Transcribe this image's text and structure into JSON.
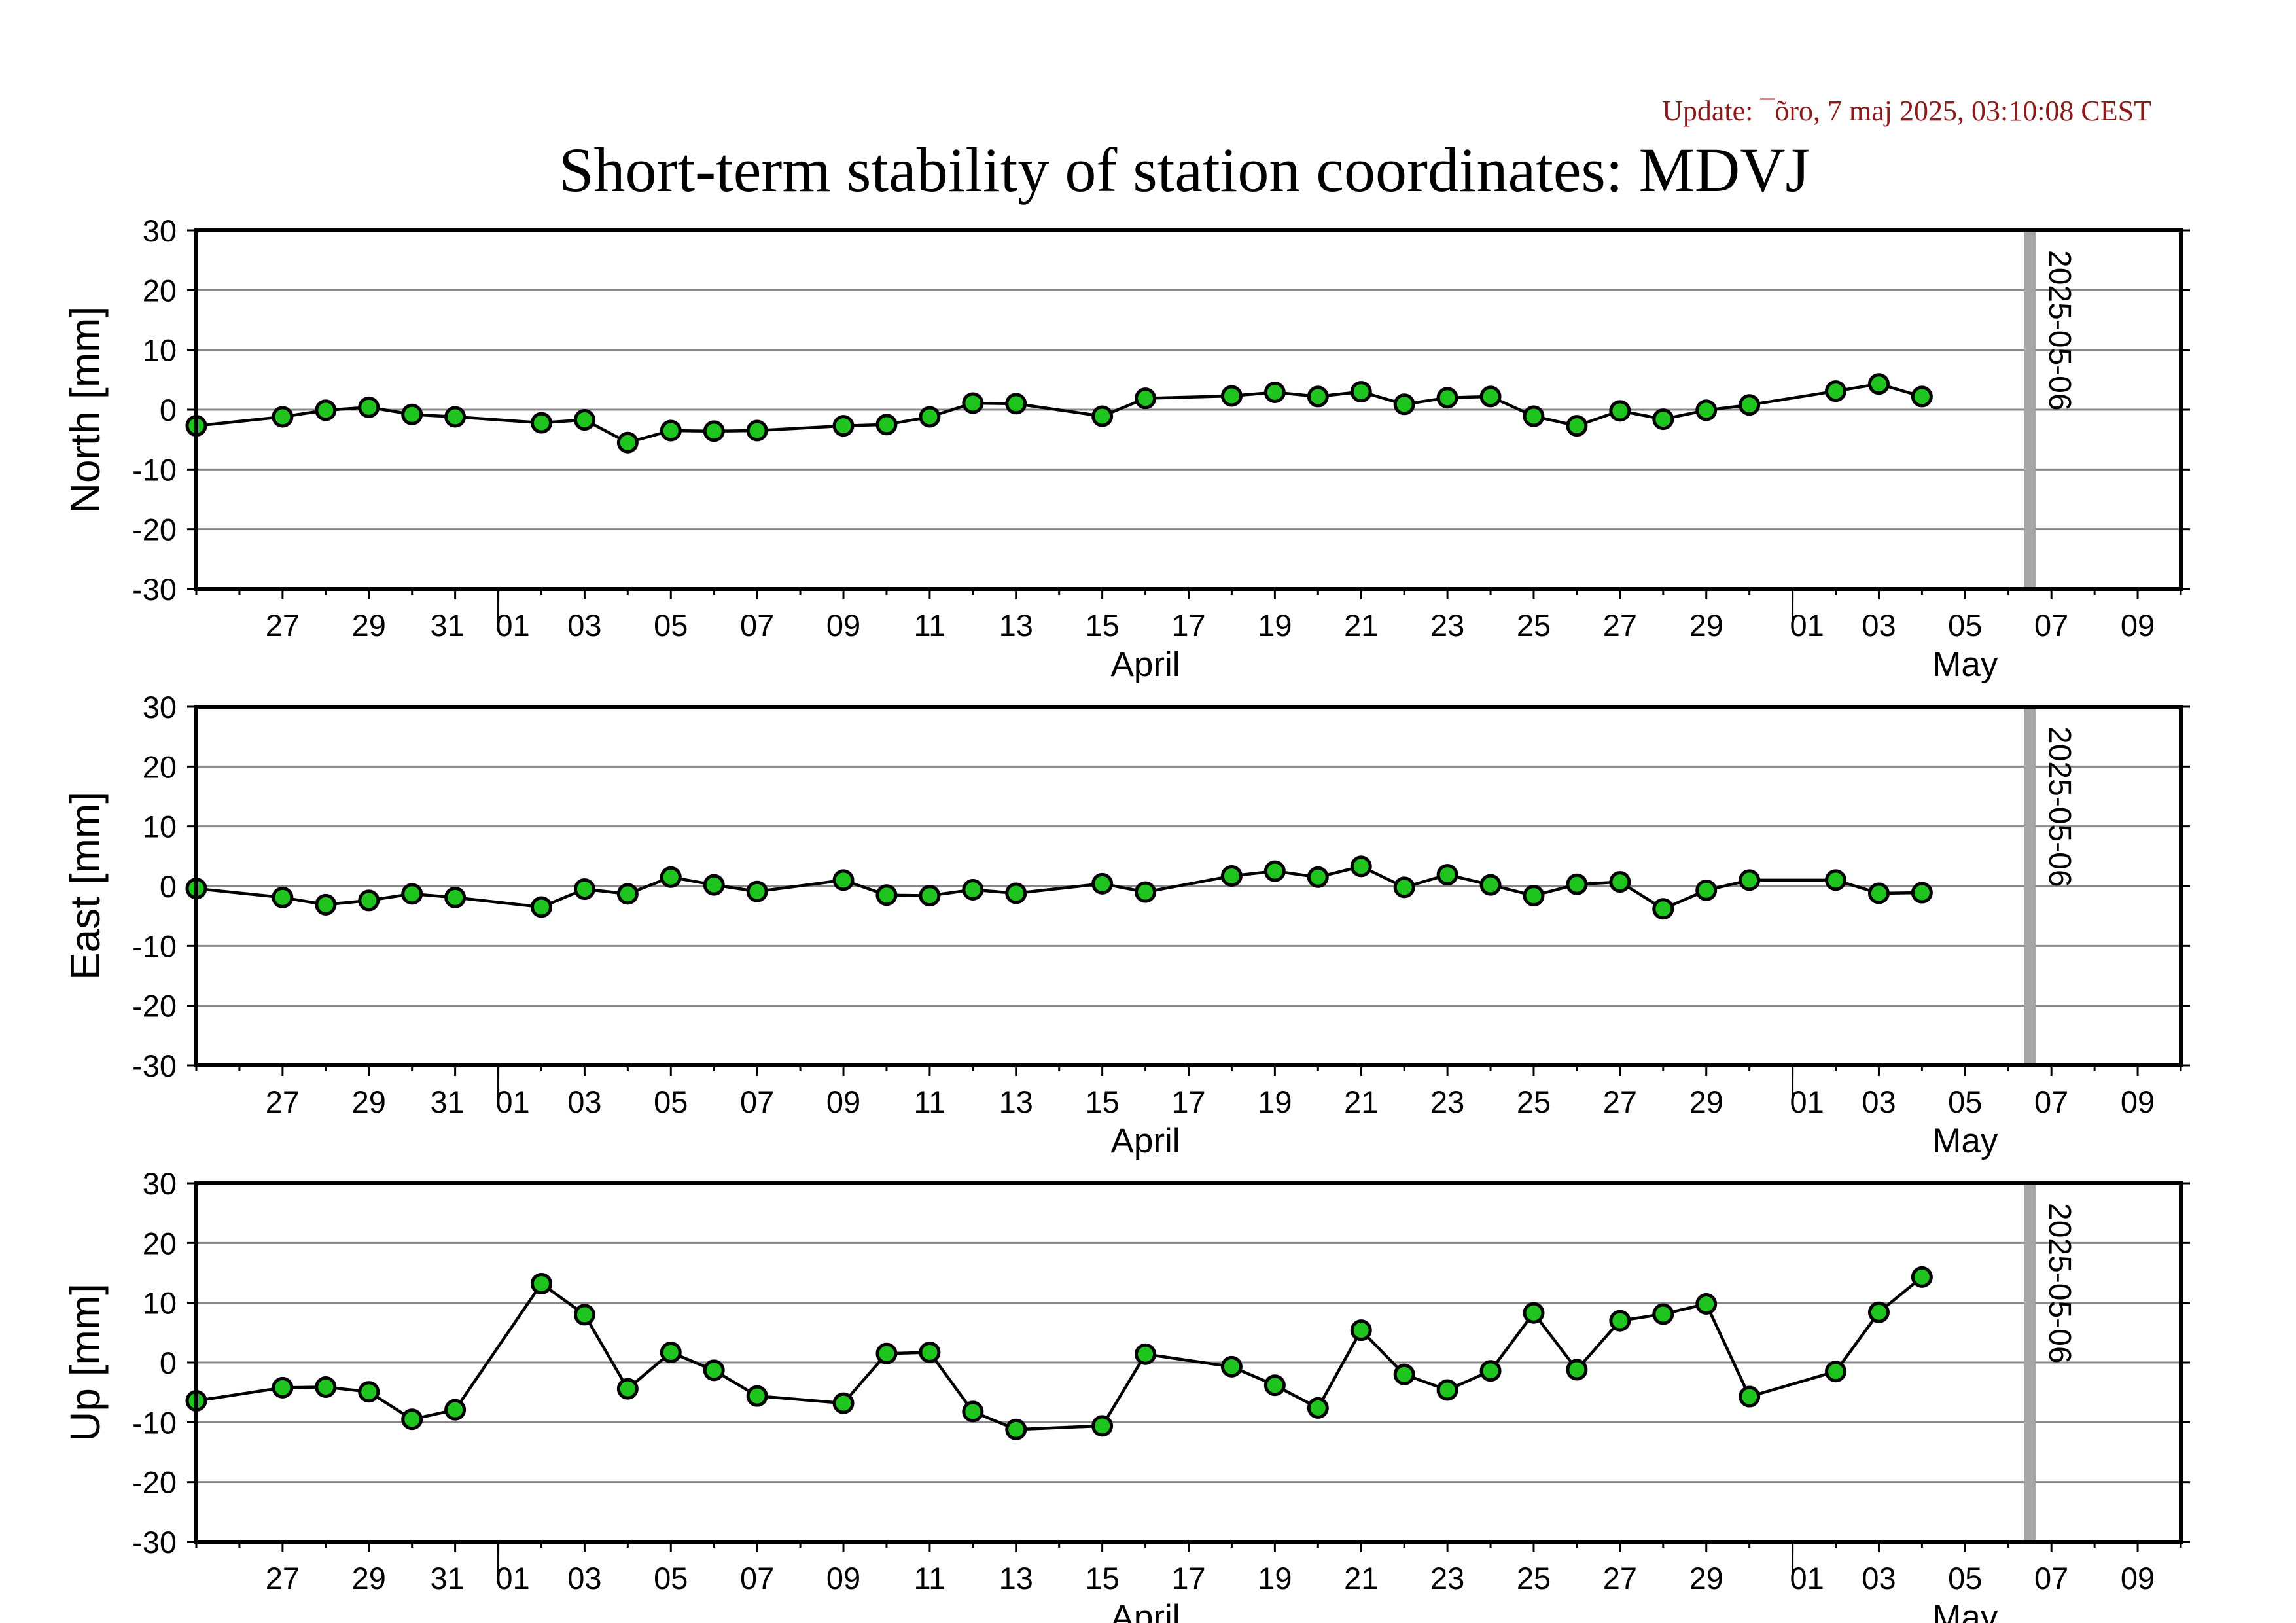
{
  "header": {
    "update_text": "Update: ¯õro, 7 maj 2025, 03:10:08 CEST",
    "title": "Short-term stability of station coordinates: MDVJ"
  },
  "colors": {
    "marker_fill": "#1fc41f",
    "marker_edge": "#000000",
    "line": "#000000",
    "grid": "#888888",
    "today_bar": "#a6a6a6",
    "update_text": "#8b1a1a"
  },
  "chart_data": [
    {
      "type": "line",
      "ylabel": "North [mm]",
      "ylim": [
        -30,
        30
      ],
      "yticks": [
        -30,
        -20,
        -10,
        0,
        10,
        20,
        30
      ],
      "x_range": [
        "2025-03-25",
        "2025-05-10"
      ],
      "x_tick_labels": [
        "27",
        "29",
        "31",
        "01",
        "03",
        "05",
        "07",
        "09",
        "11",
        "13",
        "15",
        "17",
        "19",
        "21",
        "23",
        "25",
        "27",
        "29",
        "01",
        "03",
        "05",
        "07",
        "09"
      ],
      "month_labels": [
        "April",
        "May"
      ],
      "marker_line_date": "2025-05-06",
      "marker_line_label": "2025-05-06",
      "grid": "horizontal",
      "x": [
        "2025-03-25",
        "2025-03-27",
        "2025-03-28",
        "2025-03-29",
        "2025-03-30",
        "2025-03-31",
        "2025-04-02",
        "2025-04-03",
        "2025-04-04",
        "2025-04-05",
        "2025-04-06",
        "2025-04-07",
        "2025-04-09",
        "2025-04-10",
        "2025-04-11",
        "2025-04-12",
        "2025-04-13",
        "2025-04-15",
        "2025-04-16",
        "2025-04-18",
        "2025-04-19",
        "2025-04-20",
        "2025-04-21",
        "2025-04-22",
        "2025-04-23",
        "2025-04-24",
        "2025-04-25",
        "2025-04-26",
        "2025-04-27",
        "2025-04-28",
        "2025-04-29",
        "2025-04-30",
        "2025-05-02",
        "2025-05-03",
        "2025-05-04"
      ],
      "y": [
        -2.7,
        -1.2,
        -0.1,
        0.4,
        -0.8,
        -1.2,
        -2.2,
        -1.7,
        -5.5,
        -3.5,
        -3.6,
        -3.5,
        -2.7,
        -2.5,
        -1.2,
        1.1,
        1.0,
        -1.1,
        1.9,
        2.3,
        2.9,
        2.2,
        3.0,
        0.9,
        2.0,
        2.2,
        -1.1,
        -2.7,
        -0.2,
        -1.6,
        -0.1,
        0.8,
        3.1,
        4.3,
        2.2
      ]
    },
    {
      "type": "line",
      "ylabel": "East [mm]",
      "ylim": [
        -30,
        30
      ],
      "yticks": [
        -30,
        -20,
        -10,
        0,
        10,
        20,
        30
      ],
      "x_range": [
        "2025-03-25",
        "2025-05-10"
      ],
      "x_tick_labels": [
        "27",
        "29",
        "31",
        "01",
        "03",
        "05",
        "07",
        "09",
        "11",
        "13",
        "15",
        "17",
        "19",
        "21",
        "23",
        "25",
        "27",
        "29",
        "01",
        "03",
        "05",
        "07",
        "09"
      ],
      "month_labels": [
        "April",
        "May"
      ],
      "marker_line_date": "2025-05-06",
      "marker_line_label": "2025-05-06",
      "grid": "horizontal",
      "x": [
        "2025-03-25",
        "2025-03-27",
        "2025-03-28",
        "2025-03-29",
        "2025-03-30",
        "2025-03-31",
        "2025-04-02",
        "2025-04-03",
        "2025-04-04",
        "2025-04-05",
        "2025-04-06",
        "2025-04-07",
        "2025-04-09",
        "2025-04-10",
        "2025-04-11",
        "2025-04-12",
        "2025-04-13",
        "2025-04-15",
        "2025-04-16",
        "2025-04-18",
        "2025-04-19",
        "2025-04-20",
        "2025-04-21",
        "2025-04-22",
        "2025-04-23",
        "2025-04-24",
        "2025-04-25",
        "2025-04-26",
        "2025-04-27",
        "2025-04-28",
        "2025-04-29",
        "2025-04-30",
        "2025-05-02",
        "2025-05-03",
        "2025-05-04"
      ],
      "y": [
        -0.4,
        -1.9,
        -3.1,
        -2.4,
        -1.3,
        -1.9,
        -3.5,
        -0.5,
        -1.3,
        1.5,
        0.2,
        -0.9,
        1.0,
        -1.5,
        -1.6,
        -0.6,
        -1.2,
        0.4,
        -1.0,
        1.7,
        2.5,
        1.5,
        3.3,
        -0.2,
        1.9,
        0.2,
        -1.6,
        0.3,
        0.7,
        -3.8,
        -0.7,
        1.0,
        1.0,
        -1.2,
        -1.1
      ]
    },
    {
      "type": "line",
      "ylabel": "Up [mm]",
      "ylim": [
        -30,
        30
      ],
      "yticks": [
        -30,
        -20,
        -10,
        0,
        10,
        20,
        30
      ],
      "x_range": [
        "2025-03-25",
        "2025-05-10"
      ],
      "x_tick_labels": [
        "27",
        "29",
        "31",
        "01",
        "03",
        "05",
        "07",
        "09",
        "11",
        "13",
        "15",
        "17",
        "19",
        "21",
        "23",
        "25",
        "27",
        "29",
        "01",
        "03",
        "05",
        "07",
        "09"
      ],
      "month_labels": [
        "April",
        "May"
      ],
      "marker_line_date": "2025-05-06",
      "marker_line_label": "2025-05-06",
      "grid": "horizontal",
      "x": [
        "2025-03-25",
        "2025-03-27",
        "2025-03-28",
        "2025-03-29",
        "2025-03-30",
        "2025-03-31",
        "2025-04-02",
        "2025-04-03",
        "2025-04-04",
        "2025-04-05",
        "2025-04-06",
        "2025-04-07",
        "2025-04-09",
        "2025-04-10",
        "2025-04-11",
        "2025-04-12",
        "2025-04-13",
        "2025-04-15",
        "2025-04-16",
        "2025-04-18",
        "2025-04-19",
        "2025-04-20",
        "2025-04-21",
        "2025-04-22",
        "2025-04-23",
        "2025-04-24",
        "2025-04-25",
        "2025-04-26",
        "2025-04-27",
        "2025-04-28",
        "2025-04-29",
        "2025-04-30",
        "2025-05-02",
        "2025-05-03",
        "2025-05-04"
      ],
      "y": [
        -6.4,
        -4.2,
        -4.1,
        -4.9,
        -9.5,
        -7.9,
        13.2,
        8.0,
        -4.4,
        1.7,
        -1.3,
        -5.6,
        -6.8,
        1.5,
        1.7,
        -8.2,
        -11.2,
        -10.6,
        1.4,
        -0.7,
        -3.8,
        -7.6,
        5.4,
        -2.0,
        -4.6,
        -1.4,
        8.3,
        -1.2,
        7.0,
        8.1,
        9.8,
        -5.7,
        -1.5,
        8.4,
        14.3
      ]
    }
  ]
}
